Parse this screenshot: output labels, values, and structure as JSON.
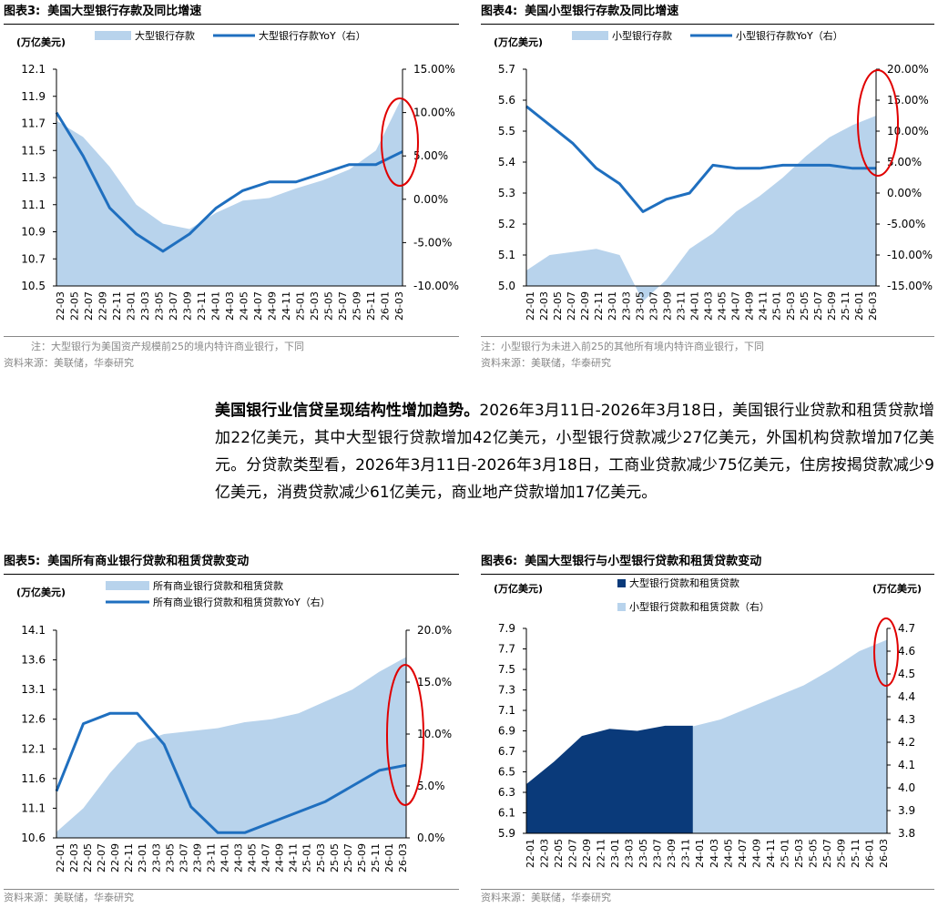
{
  "colors": {
    "area": "#b8d3ec",
    "line": "#1f6fbf",
    "dark": "#0a3a7a",
    "circle": "#e00000",
    "note": "#888888"
  },
  "charts": [
    {
      "id": "c3",
      "fig_label": "图表3:",
      "title": "美国大型银行存款及同比增速",
      "unit_left": "(万亿美元)",
      "unit_right": "",
      "legend": [
        "大型银行存款",
        "大型银行存款YoY（右）"
      ],
      "note": "注：大型银行为美国资产规模前25的境内特许商业银行，下同",
      "source": "资料来源：美联储，华泰研究",
      "y_left_ticks": [
        "12.1",
        "11.9",
        "11.7",
        "11.5",
        "11.3",
        "11.1",
        "10.9",
        "10.7",
        "10.5"
      ],
      "y_right_ticks": [
        "15.00%",
        "10.00%",
        "5.00%",
        "0.00%",
        "-5.00%",
        "-10.00%"
      ]
    },
    {
      "id": "c4",
      "fig_label": "图表4:",
      "title": "美国小型银行存款及同比增速",
      "unit_left": "(万亿美元)",
      "unit_right": "",
      "legend": [
        "小型银行存款",
        "小型银行存款YoY（右）"
      ],
      "note": "注：小型银行为未进入前25的其他所有境内特许商业银行，下同",
      "source": "资料来源：美联储，华泰研究",
      "y_left_ticks": [
        "5.7",
        "5.6",
        "5.5",
        "5.4",
        "5.3",
        "5.2",
        "5.1",
        "5.0"
      ],
      "y_right_ticks": [
        "20.00%",
        "15.00%",
        "10.00%",
        "5.00%",
        "0.00%",
        "-5.00%",
        "-10.00%",
        "-15.00%"
      ]
    },
    {
      "id": "c5",
      "fig_label": "图表5:",
      "title": "美国所有商业银行贷款和租赁贷款变动",
      "unit_left": "(万亿美元)",
      "unit_right": "",
      "legend": [
        "所有商业银行贷款和租赁贷款",
        "所有商业银行贷款和租赁贷款YoY（右）"
      ],
      "note": "",
      "source": "资料来源：美联储，华泰研究",
      "y_left_ticks": [
        "14.1",
        "13.6",
        "13.1",
        "12.6",
        "12.1",
        "11.6",
        "11.1",
        "10.6"
      ],
      "y_right_ticks": [
        "20.0%",
        "15.0%",
        "10.0%",
        "5.0%",
        "0.0%"
      ]
    },
    {
      "id": "c6",
      "fig_label": "图表6:",
      "title": "美国大型银行与小型银行贷款和租赁贷款变动",
      "unit_left": "(万亿美元)",
      "unit_right": "(万亿美元)",
      "legend": [
        "大型银行贷款和租赁贷款",
        "小型银行贷款和租赁贷款（右）"
      ],
      "note": "",
      "source": "资料来源：美联储，华泰研究",
      "y_left_ticks": [
        "7.9",
        "7.7",
        "7.5",
        "7.3",
        "7.1",
        "6.9",
        "6.7",
        "6.5",
        "6.3",
        "6.1",
        "5.9"
      ],
      "y_right_ticks": [
        "4.7",
        "4.6",
        "4.5",
        "4.4",
        "4.3",
        "4.2",
        "4.1",
        "4.0",
        "3.9",
        "3.8"
      ]
    }
  ],
  "x_labels_a": [
    "22-03",
    "22-05",
    "22-07",
    "22-09",
    "22-11",
    "23-01",
    "23-03",
    "23-05",
    "23-07",
    "23-09",
    "23-11",
    "24-01",
    "24-03",
    "24-05",
    "24-07",
    "24-09",
    "24-11",
    "25-01",
    "25-03",
    "25-05",
    "25-07",
    "25-09",
    "25-11",
    "26-01",
    "26-03"
  ],
  "x_labels_b": [
    "22-01",
    "22-03",
    "22-05",
    "22-07",
    "22-09",
    "22-11",
    "23-01",
    "23-03",
    "23-05",
    "23-07",
    "23-09",
    "23-11",
    "24-01",
    "24-03",
    "24-05",
    "24-07",
    "24-09",
    "24-11",
    "25-01",
    "25-03",
    "25-05",
    "25-07",
    "25-09",
    "25-11",
    "26-01",
    "26-03"
  ],
  "paragraph": {
    "lead": "美国银行业信贷呈现结构性增加趋势。",
    "body": "2026年3月11日-2026年3月18日，美国银行业贷款和租赁贷款增加22亿美元，其中大型银行贷款增加42亿美元，小型银行贷款减少27亿美元，外国机构贷款增加7亿美元。分贷款类型看，2026年3月11日-2026年3月18日，工商业贷款减少75亿美元，住房按揭贷款减少9亿美元，消费贷款减少61亿美元，商业地产贷款增加17亿美元。"
  },
  "chart_data": [
    {
      "type": "area+line",
      "title": "美国大型银行存款及同比增速",
      "x": [
        "22-03",
        "22-07",
        "22-11",
        "23-03",
        "23-05",
        "23-09",
        "24-01",
        "24-05",
        "24-09",
        "25-01",
        "25-05",
        "25-09",
        "26-01",
        "26-03"
      ],
      "series": [
        {
          "name": "大型银行存款",
          "axis": "left",
          "values": [
            11.72,
            11.6,
            11.38,
            11.1,
            10.96,
            10.92,
            11.04,
            11.13,
            11.15,
            11.22,
            11.28,
            11.36,
            11.5,
            11.9
          ]
        },
        {
          "name": "大型银行存款YoY（右）",
          "axis": "right",
          "values": [
            10.0,
            5.0,
            -1.0,
            -4.0,
            -6.0,
            -4.0,
            -1.0,
            1.0,
            2.0,
            2.0,
            3.0,
            4.0,
            4.0,
            5.5
          ]
        }
      ],
      "ylim_left": [
        10.5,
        12.1
      ],
      "ylim_right": [
        -10,
        15
      ]
    },
    {
      "type": "area+line",
      "title": "美国小型银行存款及同比增速",
      "x": [
        "22-01",
        "22-05",
        "22-09",
        "23-01",
        "23-03",
        "23-05",
        "23-09",
        "24-01",
        "24-03",
        "24-05",
        "24-09",
        "25-01",
        "25-05",
        "25-09",
        "26-01",
        "26-03"
      ],
      "series": [
        {
          "name": "小型银行存款",
          "axis": "left",
          "values": [
            5.05,
            5.1,
            5.11,
            5.12,
            5.1,
            4.95,
            5.02,
            5.12,
            5.17,
            5.24,
            5.29,
            5.35,
            5.42,
            5.48,
            5.52,
            5.55
          ]
        },
        {
          "name": "小型银行存款YoY（右）",
          "axis": "right",
          "values": [
            14.0,
            11.0,
            8.0,
            4.0,
            1.5,
            -3.0,
            -1.0,
            0.0,
            4.5,
            4.0,
            4.0,
            4.5,
            4.5,
            4.5,
            4.0,
            4.0
          ]
        }
      ],
      "ylim_left": [
        5.0,
        5.7
      ],
      "ylim_right": [
        -15,
        20
      ]
    },
    {
      "type": "area+line",
      "title": "美国所有商业银行贷款和租赁贷款变动",
      "x": [
        "22-01",
        "22-05",
        "22-09",
        "23-01",
        "23-05",
        "23-09",
        "24-01",
        "24-05",
        "24-09",
        "25-01",
        "25-05",
        "25-09",
        "26-01",
        "26-03"
      ],
      "series": [
        {
          "name": "所有商业银行贷款和租赁贷款",
          "axis": "left",
          "values": [
            10.7,
            11.1,
            11.7,
            12.2,
            12.35,
            12.4,
            12.45,
            12.55,
            12.6,
            12.7,
            12.9,
            13.1,
            13.4,
            13.65
          ]
        },
        {
          "name": "所有商业银行贷款和租赁贷款YoY（右）",
          "axis": "right",
          "values": [
            4.5,
            11.0,
            12.0,
            12.0,
            9.0,
            3.0,
            0.5,
            0.5,
            1.5,
            2.5,
            3.5,
            5.0,
            6.5,
            7.0
          ]
        }
      ],
      "ylim_left": [
        10.6,
        14.1
      ],
      "ylim_right": [
        0,
        20
      ]
    },
    {
      "type": "area",
      "title": "美国大型银行与小型银行贷款和租赁贷款变动",
      "x": [
        "22-01",
        "22-05",
        "22-09",
        "23-01",
        "23-05",
        "23-09",
        "24-01",
        "24-05",
        "24-09",
        "25-01",
        "25-05",
        "25-09",
        "26-01",
        "26-03"
      ],
      "series": [
        {
          "name": "大型银行贷款和租赁贷款",
          "axis": "left",
          "values": [
            6.38,
            6.6,
            6.85,
            6.92,
            6.9,
            6.95,
            6.95,
            7.0,
            7.1,
            7.2,
            7.3,
            7.45,
            7.6,
            7.75
          ]
        },
        {
          "name": "小型银行贷款和租赁贷款（右）",
          "axis": "right",
          "values": [
            3.8,
            3.9,
            4.05,
            4.15,
            4.2,
            4.24,
            4.27,
            4.3,
            4.35,
            4.4,
            4.45,
            4.52,
            4.6,
            4.65
          ]
        }
      ],
      "ylim_left": [
        5.9,
        7.9
      ],
      "ylim_right": [
        3.8,
        4.7
      ]
    }
  ]
}
